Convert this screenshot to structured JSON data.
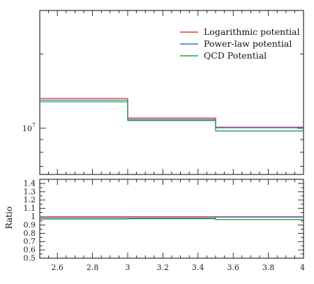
{
  "chart_data": [
    {
      "type": "line",
      "panel": "main",
      "title": "",
      "xlabel": "",
      "ylabel": "",
      "yscale": "log",
      "xlim": [
        2.5,
        4.0
      ],
      "ylim": [
        6500000,
        30000000
      ],
      "y_tick_labels": [
        {
          "value": 10000000,
          "base": "10",
          "exponent": "7"
        }
      ],
      "bin_edges": [
        2.5,
        3.0,
        3.5,
        4.0
      ],
      "legend_position": "top-right",
      "series": [
        {
          "name": "Logarithmic potential",
          "color": "#e8392b",
          "values": [
            13200000,
            11000000,
            10100000
          ]
        },
        {
          "name": "Power-law potential",
          "color": "#3f6fe0",
          "values": [
            13000000,
            10850000,
            10050000
          ]
        },
        {
          "name": "QCD Potential",
          "color": "#1fa82e",
          "values": [
            12800000,
            10750000,
            9750000
          ]
        }
      ]
    },
    {
      "type": "line",
      "panel": "ratio",
      "title": "",
      "xlabel": "",
      "ylabel": "Ratio",
      "xlim": [
        2.5,
        4.0
      ],
      "ylim": [
        0.5,
        1.45
      ],
      "x_tick_labels": [
        "2.6",
        "2.8",
        "3",
        "3.2",
        "3.4",
        "3.6",
        "3.8",
        "4"
      ],
      "y_tick_labels": [
        "0.5",
        "0.6",
        "0.7",
        "0.8",
        "0.9",
        "1",
        "1.1",
        "1.2",
        "1.3",
        "1.4"
      ],
      "bin_edges": [
        2.5,
        3.0,
        3.5,
        4.0
      ],
      "series": [
        {
          "name": "Logarithmic potential",
          "color": "#e8392b",
          "values": [
            1.0,
            1.0,
            1.0
          ]
        },
        {
          "name": "Power-law potential",
          "color": "#3f6fe0",
          "values": [
            0.985,
            0.985,
            0.995
          ]
        },
        {
          "name": "QCD Potential",
          "color": "#1fa82e",
          "values": [
            0.97,
            0.975,
            0.965
          ]
        }
      ]
    }
  ]
}
